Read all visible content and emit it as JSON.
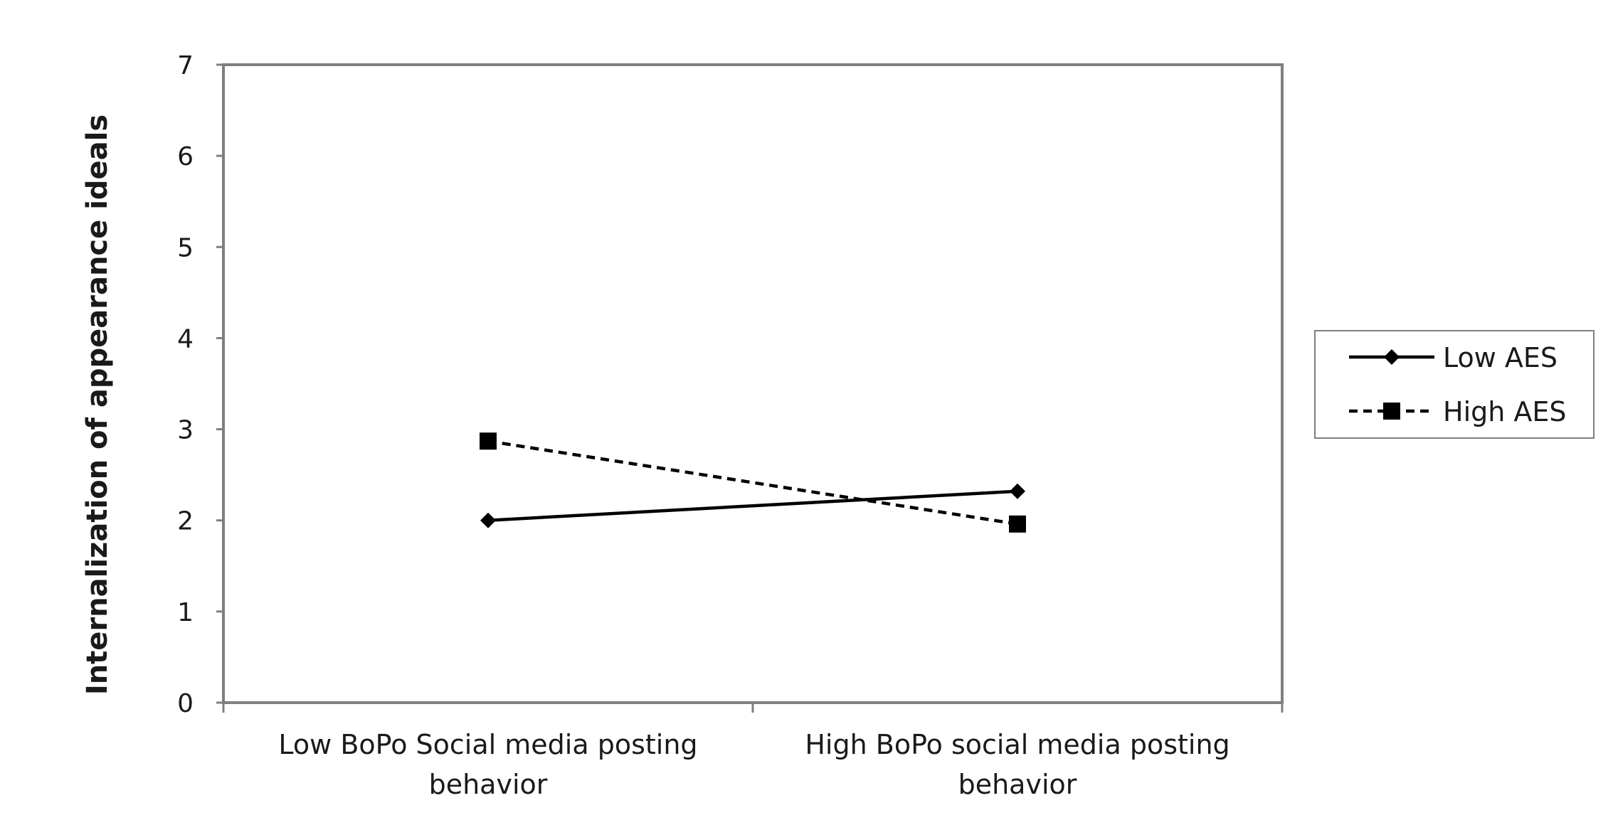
{
  "chart_data": {
    "type": "line",
    "title": "",
    "xlabel": "",
    "ylabel": "Internalization of appearance ideals",
    "ylim": [
      0,
      7
    ],
    "yticks": [
      0,
      1,
      2,
      3,
      4,
      5,
      6,
      7
    ],
    "categories": [
      [
        "Low BoPo Social media posting",
        "behavior"
      ],
      [
        "High BoPo social media posting",
        "behavior"
      ]
    ],
    "series": [
      {
        "name": "Low AES",
        "values": [
          2.0,
          2.32
        ],
        "line_style": "solid",
        "marker": "diamond"
      },
      {
        "name": "High AES",
        "values": [
          2.87,
          1.96
        ],
        "line_style": "dashed",
        "marker": "square"
      }
    ],
    "grid": false,
    "legend_position": "right"
  },
  "colors": {
    "line": "#000000",
    "axis": "#7f7f7f"
  }
}
